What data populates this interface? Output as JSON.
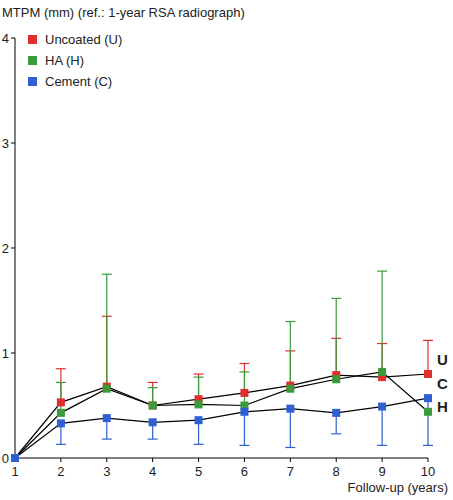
{
  "chart_data": {
    "type": "line",
    "y_label": "MTPM (mm) (ref.: 1-year RSA radiograph)",
    "x_label": "Follow-up (years)",
    "x": [
      1,
      2,
      3,
      4,
      5,
      6,
      7,
      8,
      9,
      10
    ],
    "xlim": [
      1,
      10
    ],
    "xticks": [
      1,
      2,
      3,
      4,
      5,
      6,
      7,
      8,
      9,
      10
    ],
    "ylim": [
      0,
      4
    ],
    "yticks": [
      0,
      1,
      2,
      3,
      4
    ],
    "grid": false,
    "legend": "top-left",
    "marker": "square",
    "series": [
      {
        "name": "Uncoated (U)",
        "end_label": "U",
        "color": "#e0302e",
        "values": [
          0,
          0.53,
          0.68,
          0.5,
          0.56,
          0.62,
          0.69,
          0.79,
          0.77,
          0.8
        ],
        "errors_upper": [
          null,
          0.32,
          0.67,
          0.22,
          0.24,
          0.28,
          0.33,
          0.35,
          0.32,
          0.32
        ]
      },
      {
        "name": "HA (H)",
        "end_label": "H",
        "color": "#3c9a3c",
        "values": [
          0,
          0.43,
          0.66,
          0.5,
          0.51,
          0.5,
          0.66,
          0.75,
          0.82,
          0.44
        ],
        "errors_upper": [
          null,
          0.29,
          1.09,
          0.17,
          0.26,
          0.32,
          0.64,
          0.77,
          0.96,
          null
        ]
      },
      {
        "name": "Cement (C)",
        "end_label": "C",
        "color": "#2f5fd0",
        "values": [
          0,
          0.33,
          0.38,
          0.34,
          0.36,
          0.44,
          0.47,
          0.43,
          0.49,
          0.57
        ],
        "errors_lower": [
          null,
          0.2,
          0.2,
          0.16,
          0.23,
          0.32,
          0.37,
          0.2,
          0.37,
          0.45
        ]
      }
    ]
  }
}
